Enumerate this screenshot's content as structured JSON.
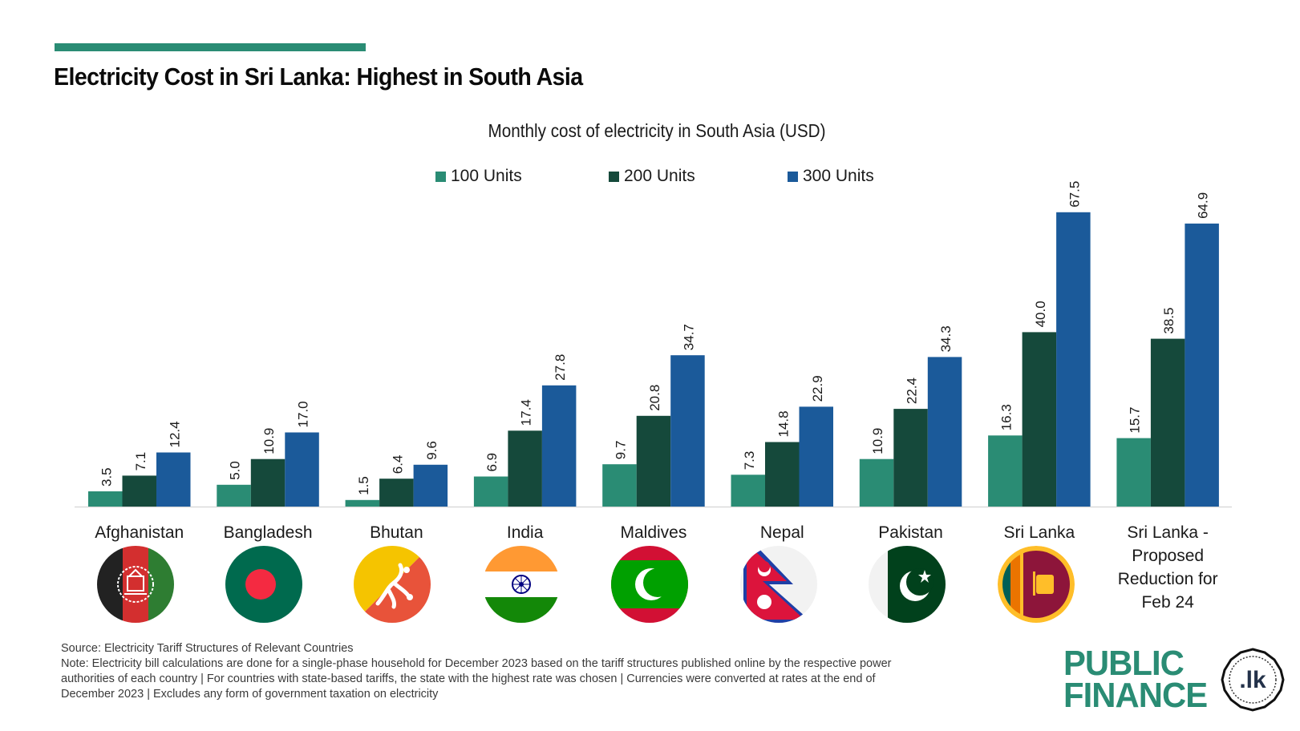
{
  "header": {
    "title": "Electricity Cost in Sri Lanka: Highest in South Asia"
  },
  "colors": {
    "accent": "#2a8c74",
    "series_100": "#2a8c74",
    "series_200": "#15493b",
    "series_300": "#1b5a9a"
  },
  "chart_data": {
    "type": "bar",
    "title": "Monthly cost of electricity in South Asia (USD)",
    "xlabel": "",
    "ylabel": "",
    "ylim": [
      0,
      70
    ],
    "grid": false,
    "legend_position": "top-center",
    "categories": [
      "Afghanistan",
      "Bangladesh",
      "Bhutan",
      "India",
      "Maldives",
      "Nepal",
      "Pakistan",
      "Sri Lanka",
      "Sri Lanka - Proposed Reduction for Feb 24"
    ],
    "category_lines": [
      [
        "Afghanistan"
      ],
      [
        "Bangladesh"
      ],
      [
        "Bhutan"
      ],
      [
        "India"
      ],
      [
        "Maldives"
      ],
      [
        "Nepal"
      ],
      [
        "Pakistan"
      ],
      [
        "Sri Lanka"
      ],
      [
        "Sri Lanka -",
        "Proposed",
        "Reduction for",
        "Feb 24"
      ]
    ],
    "series": [
      {
        "name": "100 Units",
        "values": [
          3.5,
          5.0,
          1.5,
          6.9,
          9.7,
          7.3,
          10.9,
          16.3,
          15.7
        ]
      },
      {
        "name": "200 Units",
        "values": [
          7.1,
          10.9,
          6.4,
          17.4,
          20.8,
          14.8,
          22.4,
          40.0,
          38.5
        ]
      },
      {
        "name": "300 Units",
        "values": [
          12.4,
          17.0,
          9.6,
          27.8,
          34.7,
          22.9,
          34.3,
          67.5,
          64.9
        ]
      }
    ],
    "data_labels": true,
    "data_label_format": "0.0"
  },
  "flags": [
    {
      "country": "Afghanistan",
      "icon": "flag-afghanistan-icon"
    },
    {
      "country": "Bangladesh",
      "icon": "flag-bangladesh-icon"
    },
    {
      "country": "Bhutan",
      "icon": "flag-bhutan-icon"
    },
    {
      "country": "India",
      "icon": "flag-india-icon"
    },
    {
      "country": "Maldives",
      "icon": "flag-maldives-icon"
    },
    {
      "country": "Nepal",
      "icon": "flag-nepal-icon"
    },
    {
      "country": "Pakistan",
      "icon": "flag-pakistan-icon"
    },
    {
      "country": "Sri Lanka",
      "icon": "flag-sri-lanka-icon"
    }
  ],
  "footnote": {
    "source": "Source: Electricity Tariff Structures of Relevant Countries",
    "note_line1": "Note: Electricity bill calculations are done for a single-phase household for December 2023 based on the tariff structures published online by the respective power",
    "note_line2": "authorities of each country | For countries with state-based tariffs, the state with the highest rate was chosen | Currencies were converted at rates at the end of",
    "note_line3": "December 2023 | Excludes any form of government taxation on electricity"
  },
  "logo": {
    "line1": "PUBLIC",
    "line2": "FINANCE",
    "seal_text": ".lk"
  }
}
